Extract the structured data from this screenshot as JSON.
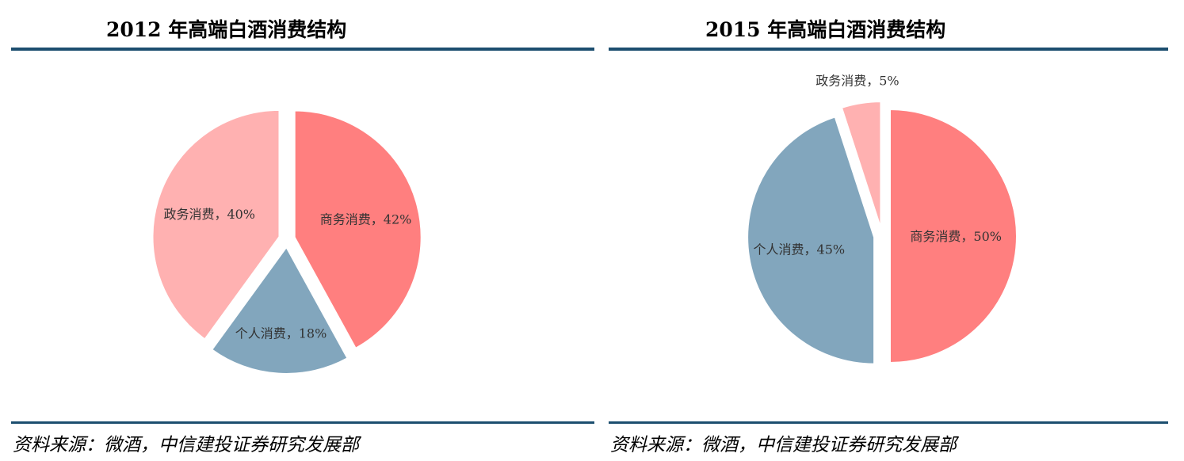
{
  "source_text": "资料来源：微酒，中信建投证券研究发展部",
  "colors": {
    "rule": "#1c4e6f",
    "business": "#ff7f7f",
    "government": "#ffb1b1",
    "personal": "#82a6bd"
  },
  "chart_data": [
    {
      "type": "pie",
      "title": "2012 年高端白酒消费结构",
      "slices": [
        {
          "label": "商务消费，42%",
          "value": 42,
          "color": "#ff7f7f"
        },
        {
          "label": "个人消费，18%",
          "value": 18,
          "color": "#82a6bd"
        },
        {
          "label": "政务消费，40%",
          "value": 40,
          "color": "#ffb1b1"
        }
      ]
    },
    {
      "type": "pie",
      "title": "2015 年高端白酒消费结构",
      "slices": [
        {
          "label": "商务消费，50%",
          "value": 50,
          "color": "#ff7f7f"
        },
        {
          "label": "个人消费，45%",
          "value": 45,
          "color": "#82a6bd"
        },
        {
          "label": "政务消费，5%",
          "value": 5,
          "color": "#ffb1b1"
        }
      ]
    }
  ]
}
